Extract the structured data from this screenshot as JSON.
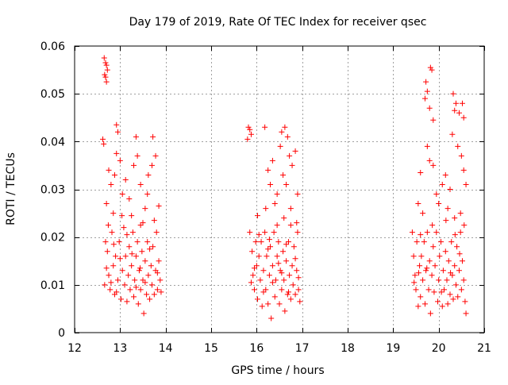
{
  "chart_data": {
    "type": "scatter",
    "title": "Day 179 of 2019, Rate Of TEC Index for receiver qsec",
    "xlabel": "GPS time / hours",
    "ylabel": "ROTI / TECUs",
    "xlim": [
      12,
      21
    ],
    "ylim": [
      0,
      0.06
    ],
    "x_ticks": [
      12,
      13,
      14,
      15,
      16,
      17,
      18,
      19,
      20,
      21
    ],
    "x_tick_labels": [
      "12",
      "13",
      "14",
      "15",
      "16",
      "17",
      "18",
      "19",
      "20",
      "21"
    ],
    "y_ticks": [
      0,
      0.01,
      0.02,
      0.03,
      0.04,
      0.05,
      0.06
    ],
    "y_tick_labels": [
      "0",
      "0.01",
      "0.02",
      "0.03",
      "0.04",
      "0.05",
      "0.06"
    ],
    "grid": true,
    "marker": "plus",
    "series": [
      {
        "name": "ROTI",
        "color": "#ff0000",
        "points": [
          [
            12.65,
            0.0575
          ],
          [
            12.68,
            0.0565
          ],
          [
            12.7,
            0.056
          ],
          [
            12.72,
            0.055
          ],
          [
            12.66,
            0.054
          ],
          [
            12.68,
            0.0535
          ],
          [
            12.7,
            0.0525
          ],
          [
            12.62,
            0.0405
          ],
          [
            12.64,
            0.0395
          ],
          [
            12.92,
            0.0435
          ],
          [
            12.95,
            0.042
          ],
          [
            13.35,
            0.041
          ],
          [
            13.72,
            0.041
          ],
          [
            12.75,
            0.034
          ],
          [
            12.8,
            0.031
          ],
          [
            12.88,
            0.033
          ],
          [
            12.92,
            0.0375
          ],
          [
            13.0,
            0.036
          ],
          [
            13.05,
            0.029
          ],
          [
            13.12,
            0.032
          ],
          [
            13.2,
            0.028
          ],
          [
            13.3,
            0.035
          ],
          [
            13.38,
            0.037
          ],
          [
            13.45,
            0.031
          ],
          [
            13.55,
            0.026
          ],
          [
            13.62,
            0.033
          ],
          [
            13.7,
            0.035
          ],
          [
            13.78,
            0.037
          ],
          [
            13.85,
            0.0265
          ],
          [
            12.7,
            0.027
          ],
          [
            12.85,
            0.025
          ],
          [
            13.25,
            0.0245
          ],
          [
            13.5,
            0.023
          ],
          [
            13.6,
            0.029
          ],
          [
            12.68,
            0.019
          ],
          [
            12.72,
            0.017
          ],
          [
            12.75,
            0.012
          ],
          [
            12.78,
            0.009
          ],
          [
            12.82,
            0.021
          ],
          [
            12.85,
            0.014
          ],
          [
            12.88,
            0.008
          ],
          [
            12.9,
            0.016
          ],
          [
            12.95,
            0.011
          ],
          [
            12.98,
            0.019
          ],
          [
            13.02,
            0.007
          ],
          [
            13.05,
            0.013
          ],
          [
            13.08,
            0.022
          ],
          [
            13.1,
            0.01
          ],
          [
            13.12,
            0.016
          ],
          [
            13.15,
            0.0065
          ],
          [
            13.18,
            0.012
          ],
          [
            13.2,
            0.018
          ],
          [
            13.22,
            0.009
          ],
          [
            13.25,
            0.014
          ],
          [
            13.28,
            0.021
          ],
          [
            13.3,
            0.0075
          ],
          [
            13.32,
            0.011
          ],
          [
            13.35,
            0.016
          ],
          [
            13.38,
            0.019
          ],
          [
            13.4,
            0.006
          ],
          [
            13.42,
            0.013
          ],
          [
            13.45,
            0.009
          ],
          [
            13.48,
            0.017
          ],
          [
            13.5,
            0.011
          ],
          [
            13.52,
            0.004
          ],
          [
            13.55,
            0.015
          ],
          [
            13.58,
            0.008
          ],
          [
            13.6,
            0.019
          ],
          [
            13.62,
            0.012
          ],
          [
            13.65,
            0.007
          ],
          [
            13.68,
            0.014
          ],
          [
            13.7,
            0.01
          ],
          [
            13.72,
            0.018
          ],
          [
            13.75,
            0.008
          ],
          [
            13.78,
            0.013
          ],
          [
            13.8,
            0.021
          ],
          [
            13.82,
            0.009
          ],
          [
            13.85,
            0.015
          ],
          [
            13.88,
            0.011
          ],
          [
            13.9,
            0.0085
          ],
          [
            12.66,
            0.01
          ],
          [
            12.7,
            0.0135
          ],
          [
            12.8,
            0.0105
          ],
          [
            12.92,
            0.0085
          ],
          [
            13.0,
            0.0155
          ],
          [
            13.15,
            0.0205
          ],
          [
            13.35,
            0.0095
          ],
          [
            13.45,
            0.0225
          ],
          [
            13.55,
            0.0105
          ],
          [
            13.65,
            0.0175
          ],
          [
            13.75,
            0.0235
          ],
          [
            13.82,
            0.0125
          ],
          [
            12.74,
            0.0225
          ],
          [
            12.86,
            0.0185
          ],
          [
            13.04,
            0.0245
          ],
          [
            13.26,
            0.0165
          ],
          [
            13.44,
            0.0135
          ],
          [
            15.82,
            0.043
          ],
          [
            15.85,
            0.0425
          ],
          [
            15.88,
            0.0415
          ],
          [
            16.18,
            0.043
          ],
          [
            16.55,
            0.042
          ],
          [
            16.62,
            0.043
          ],
          [
            16.68,
            0.041
          ],
          [
            15.8,
            0.0405
          ],
          [
            16.25,
            0.034
          ],
          [
            16.3,
            0.031
          ],
          [
            16.35,
            0.036
          ],
          [
            16.45,
            0.029
          ],
          [
            16.52,
            0.039
          ],
          [
            16.58,
            0.033
          ],
          [
            16.65,
            0.031
          ],
          [
            16.72,
            0.037
          ],
          [
            16.78,
            0.035
          ],
          [
            16.85,
            0.038
          ],
          [
            16.9,
            0.029
          ],
          [
            16.2,
            0.026
          ],
          [
            16.4,
            0.027
          ],
          [
            16.6,
            0.024
          ],
          [
            16.75,
            0.026
          ],
          [
            16.88,
            0.023
          ],
          [
            15.85,
            0.021
          ],
          [
            15.9,
            0.017
          ],
          [
            15.92,
            0.012
          ],
          [
            15.95,
            0.009
          ],
          [
            15.98,
            0.019
          ],
          [
            16.0,
            0.014
          ],
          [
            16.02,
            0.007
          ],
          [
            16.05,
            0.016
          ],
          [
            16.08,
            0.011
          ],
          [
            16.1,
            0.019
          ],
          [
            16.12,
            0.0055
          ],
          [
            16.15,
            0.013
          ],
          [
            16.18,
            0.021
          ],
          [
            16.2,
            0.009
          ],
          [
            16.22,
            0.016
          ],
          [
            16.25,
            0.006
          ],
          [
            16.28,
            0.012
          ],
          [
            16.3,
            0.018
          ],
          [
            16.32,
            0.003
          ],
          [
            16.35,
            0.014
          ],
          [
            16.38,
            0.021
          ],
          [
            16.4,
            0.0075
          ],
          [
            16.42,
            0.011
          ],
          [
            16.45,
            0.016
          ],
          [
            16.48,
            0.019
          ],
          [
            16.5,
            0.006
          ],
          [
            16.52,
            0.013
          ],
          [
            16.55,
            0.009
          ],
          [
            16.58,
            0.017
          ],
          [
            16.6,
            0.011
          ],
          [
            16.62,
            0.0045
          ],
          [
            16.65,
            0.015
          ],
          [
            16.68,
            0.008
          ],
          [
            16.7,
            0.019
          ],
          [
            16.72,
            0.012
          ],
          [
            16.75,
            0.007
          ],
          [
            16.78,
            0.014
          ],
          [
            16.8,
            0.01
          ],
          [
            16.82,
            0.018
          ],
          [
            16.85,
            0.008
          ],
          [
            16.88,
            0.013
          ],
          [
            16.9,
            0.021
          ],
          [
            16.92,
            0.009
          ],
          [
            16.95,
            0.0065
          ],
          [
            15.88,
            0.0105
          ],
          [
            15.95,
            0.0135
          ],
          [
            16.05,
            0.0205
          ],
          [
            16.15,
            0.0085
          ],
          [
            16.25,
            0.0175
          ],
          [
            16.35,
            0.0105
          ],
          [
            16.45,
            0.0225
          ],
          [
            16.55,
            0.0125
          ],
          [
            16.65,
            0.0185
          ],
          [
            16.75,
            0.0225
          ],
          [
            16.85,
            0.0155
          ],
          [
            16.92,
            0.0115
          ],
          [
            16.02,
            0.0245
          ],
          [
            16.28,
            0.0195
          ],
          [
            16.48,
            0.0145
          ],
          [
            16.7,
            0.0085
          ],
          [
            19.82,
            0.0555
          ],
          [
            19.85,
            0.055
          ],
          [
            19.72,
            0.0525
          ],
          [
            19.75,
            0.0505
          ],
          [
            19.7,
            0.049
          ],
          [
            19.8,
            0.047
          ],
          [
            19.88,
            0.0445
          ],
          [
            20.32,
            0.05
          ],
          [
            20.38,
            0.048
          ],
          [
            20.35,
            0.0465
          ],
          [
            20.45,
            0.046
          ],
          [
            20.52,
            0.048
          ],
          [
            20.55,
            0.045
          ],
          [
            20.3,
            0.0415
          ],
          [
            19.75,
            0.039
          ],
          [
            19.8,
            0.036
          ],
          [
            19.6,
            0.0335
          ],
          [
            19.88,
            0.035
          ],
          [
            19.95,
            0.029
          ],
          [
            20.08,
            0.031
          ],
          [
            20.15,
            0.033
          ],
          [
            20.25,
            0.03
          ],
          [
            20.42,
            0.039
          ],
          [
            20.5,
            0.037
          ],
          [
            20.55,
            0.034
          ],
          [
            20.6,
            0.031
          ],
          [
            19.55,
            0.027
          ],
          [
            19.65,
            0.025
          ],
          [
            20.0,
            0.027
          ],
          [
            20.2,
            0.026
          ],
          [
            20.35,
            0.024
          ],
          [
            20.48,
            0.025
          ],
          [
            19.42,
            0.021
          ],
          [
            19.45,
            0.016
          ],
          [
            19.48,
            0.012
          ],
          [
            19.5,
            0.009
          ],
          [
            19.52,
            0.019
          ],
          [
            19.55,
            0.0055
          ],
          [
            19.58,
            0.014
          ],
          [
            19.6,
            0.0075
          ],
          [
            19.62,
            0.016
          ],
          [
            19.65,
            0.011
          ],
          [
            19.68,
            0.019
          ],
          [
            19.7,
            0.006
          ],
          [
            19.72,
            0.013
          ],
          [
            19.75,
            0.021
          ],
          [
            19.78,
            0.009
          ],
          [
            19.8,
            0.015
          ],
          [
            19.82,
            0.004
          ],
          [
            19.85,
            0.012
          ],
          [
            19.88,
            0.018
          ],
          [
            19.9,
            0.0085
          ],
          [
            19.92,
            0.014
          ],
          [
            19.95,
            0.021
          ],
          [
            19.98,
            0.0065
          ],
          [
            20.0,
            0.011
          ],
          [
            20.02,
            0.016
          ],
          [
            20.05,
            0.019
          ],
          [
            20.08,
            0.0055
          ],
          [
            20.1,
            0.013
          ],
          [
            20.12,
            0.009
          ],
          [
            20.15,
            0.017
          ],
          [
            20.18,
            0.011
          ],
          [
            20.2,
            0.006
          ],
          [
            20.22,
            0.015
          ],
          [
            20.25,
            0.008
          ],
          [
            20.28,
            0.019
          ],
          [
            20.3,
            0.012
          ],
          [
            20.32,
            0.007
          ],
          [
            20.35,
            0.014
          ],
          [
            20.38,
            0.01
          ],
          [
            20.4,
            0.018
          ],
          [
            20.42,
            0.0075
          ],
          [
            20.45,
            0.013
          ],
          [
            20.48,
            0.021
          ],
          [
            20.5,
            0.009
          ],
          [
            20.52,
            0.015
          ],
          [
            20.55,
            0.011
          ],
          [
            20.58,
            0.0065
          ],
          [
            20.6,
            0.004
          ],
          [
            19.46,
            0.0105
          ],
          [
            19.6,
            0.0205
          ],
          [
            19.74,
            0.0135
          ],
          [
            19.86,
            0.0225
          ],
          [
            20.06,
            0.0085
          ],
          [
            20.16,
            0.0235
          ],
          [
            20.26,
            0.0125
          ],
          [
            20.36,
            0.0205
          ],
          [
            20.46,
            0.0165
          ],
          [
            20.56,
            0.0225
          ],
          [
            19.56,
            0.0125
          ]
        ]
      }
    ]
  }
}
